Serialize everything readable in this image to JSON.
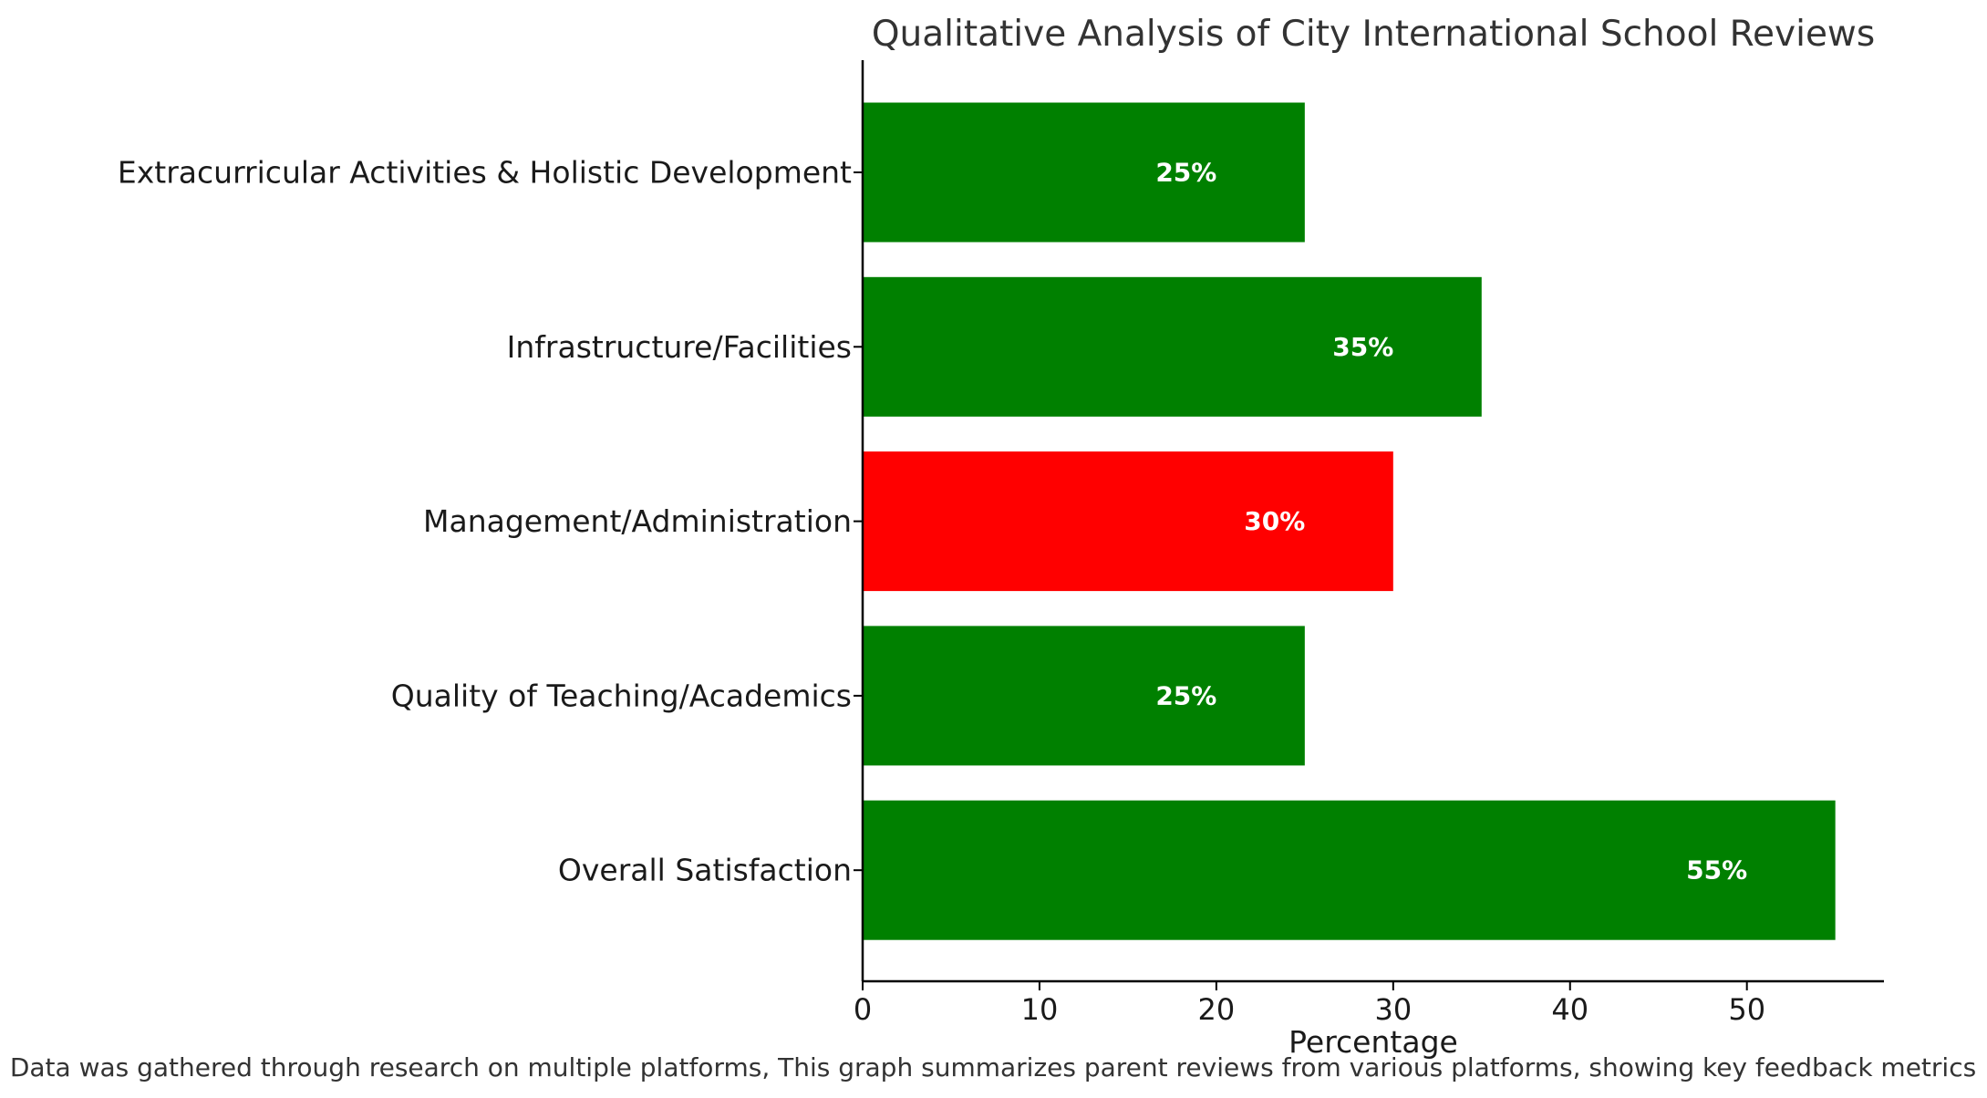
{
  "chart_data": {
    "type": "bar",
    "orientation": "horizontal",
    "title": "Qualitative Analysis of City International School Reviews",
    "xlabel": "Percentage",
    "ylabel": "",
    "footnote": "Data was gathered through research on multiple platforms, This graph summarizes parent reviews from various platforms, showing key feedback metrics",
    "categories": [
      "Extracurricular Activities & Holistic Development",
      "Infrastructure/Facilities",
      "Management/Administration",
      "Quality of Teaching/Academics",
      "Overall Satisfaction"
    ],
    "values": [
      25,
      35,
      30,
      25,
      55
    ],
    "data_labels": [
      "25%",
      "35%",
      "30%",
      "25%",
      "55%"
    ],
    "colors": [
      "#008000",
      "#008000",
      "#ff0000",
      "#008000",
      "#008000"
    ],
    "xlim": [
      0,
      57.75
    ],
    "xticks": [
      0,
      10,
      20,
      30,
      40,
      50
    ],
    "grid": false,
    "legend": "none"
  }
}
